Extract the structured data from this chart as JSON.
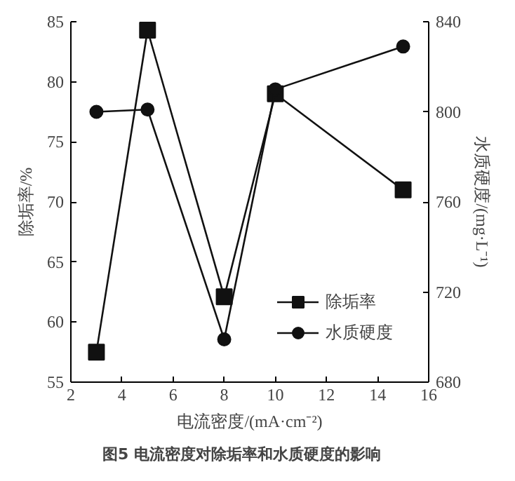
{
  "chart_data": {
    "type": "line",
    "x": [
      3,
      5,
      8,
      10,
      15
    ],
    "series": [
      {
        "name": "除垢率",
        "color": "#111111",
        "values": [
          57.5,
          84.3,
          62.1,
          79,
          71
        ],
        "marker": "square"
      },
      {
        "name": "水质硬度",
        "color": "#111111",
        "values": [
          800,
          801,
          699,
          810,
          829
        ],
        "marker": "circle",
        "axis": "y2"
      }
    ],
    "xlabel": "电流密度/(mA·cm⁻²)",
    "ylabel": "除垢率/%",
    "y2label": "水质硬度/(mg·L⁻¹)",
    "xlim": [
      2,
      16
    ],
    "xticks": [
      2,
      4,
      6,
      8,
      10,
      12,
      14,
      16
    ],
    "ylim": [
      55,
      85
    ],
    "yticks": [
      55,
      60,
      65,
      70,
      75,
      80,
      85
    ],
    "y2lim": [
      680,
      840
    ],
    "y2ticks": [
      680,
      720,
      760,
      800,
      840
    ],
    "grid": false,
    "legend": "bottom right",
    "annotations": [
      "图5    电流密度对除垢率和水质硬度的影响"
    ]
  }
}
